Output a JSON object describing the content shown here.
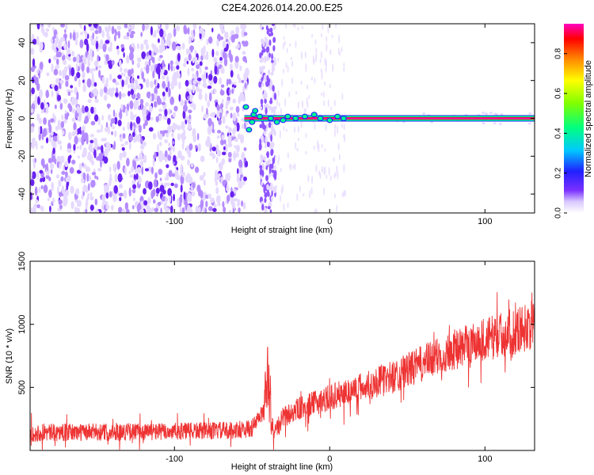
{
  "title": "C2E4.2026.014.20.00.E25",
  "chart_data": [
    {
      "type": "heatmap",
      "xlabel": "Height of straight line (km)",
      "ylabel": "Frequency (Hz)",
      "xlim": [
        -193,
        132
      ],
      "ylim": [
        -50,
        50
      ],
      "x_ticks": [
        -100,
        0,
        100
      ],
      "y_ticks": [
        -40,
        -20,
        0,
        20,
        40
      ],
      "colorbar": {
        "label": "Normalized spectral amplitude",
        "range": [
          0.0,
          0.95
        ],
        "ticks": [
          0.0,
          0.2,
          0.4,
          0.6,
          0.8
        ]
      },
      "features": {
        "noise_region_x": [
          -193,
          -53
        ],
        "sparse_region_x": [
          -53,
          10
        ],
        "signal_line_frequency": 0,
        "signal_line_start_x": -55,
        "signal_line_end_x": 132,
        "signal_line_amplitude": 0.95
      }
    },
    {
      "type": "line",
      "xlabel": "Height of straight line (km)",
      "ylabel": "SNR (10 * v/v)",
      "xlim": [
        -193,
        132
      ],
      "ylim": [
        0,
        1500
      ],
      "x_ticks": [
        -100,
        0,
        100
      ],
      "y_ticks": [
        500,
        1000,
        1500
      ],
      "series": [
        {
          "name": "SNR",
          "color": "#ee3333",
          "x": [
            -193,
            -150,
            -100,
            -60,
            -50,
            -42,
            -40,
            -37,
            -35,
            -30,
            -20,
            0,
            20,
            40,
            60,
            80,
            100,
            120,
            132
          ],
          "y_mean": [
            140,
            145,
            150,
            160,
            175,
            320,
            600,
            200,
            150,
            260,
            330,
            420,
            500,
            580,
            690,
            800,
            880,
            950,
            1000
          ]
        }
      ]
    }
  ]
}
